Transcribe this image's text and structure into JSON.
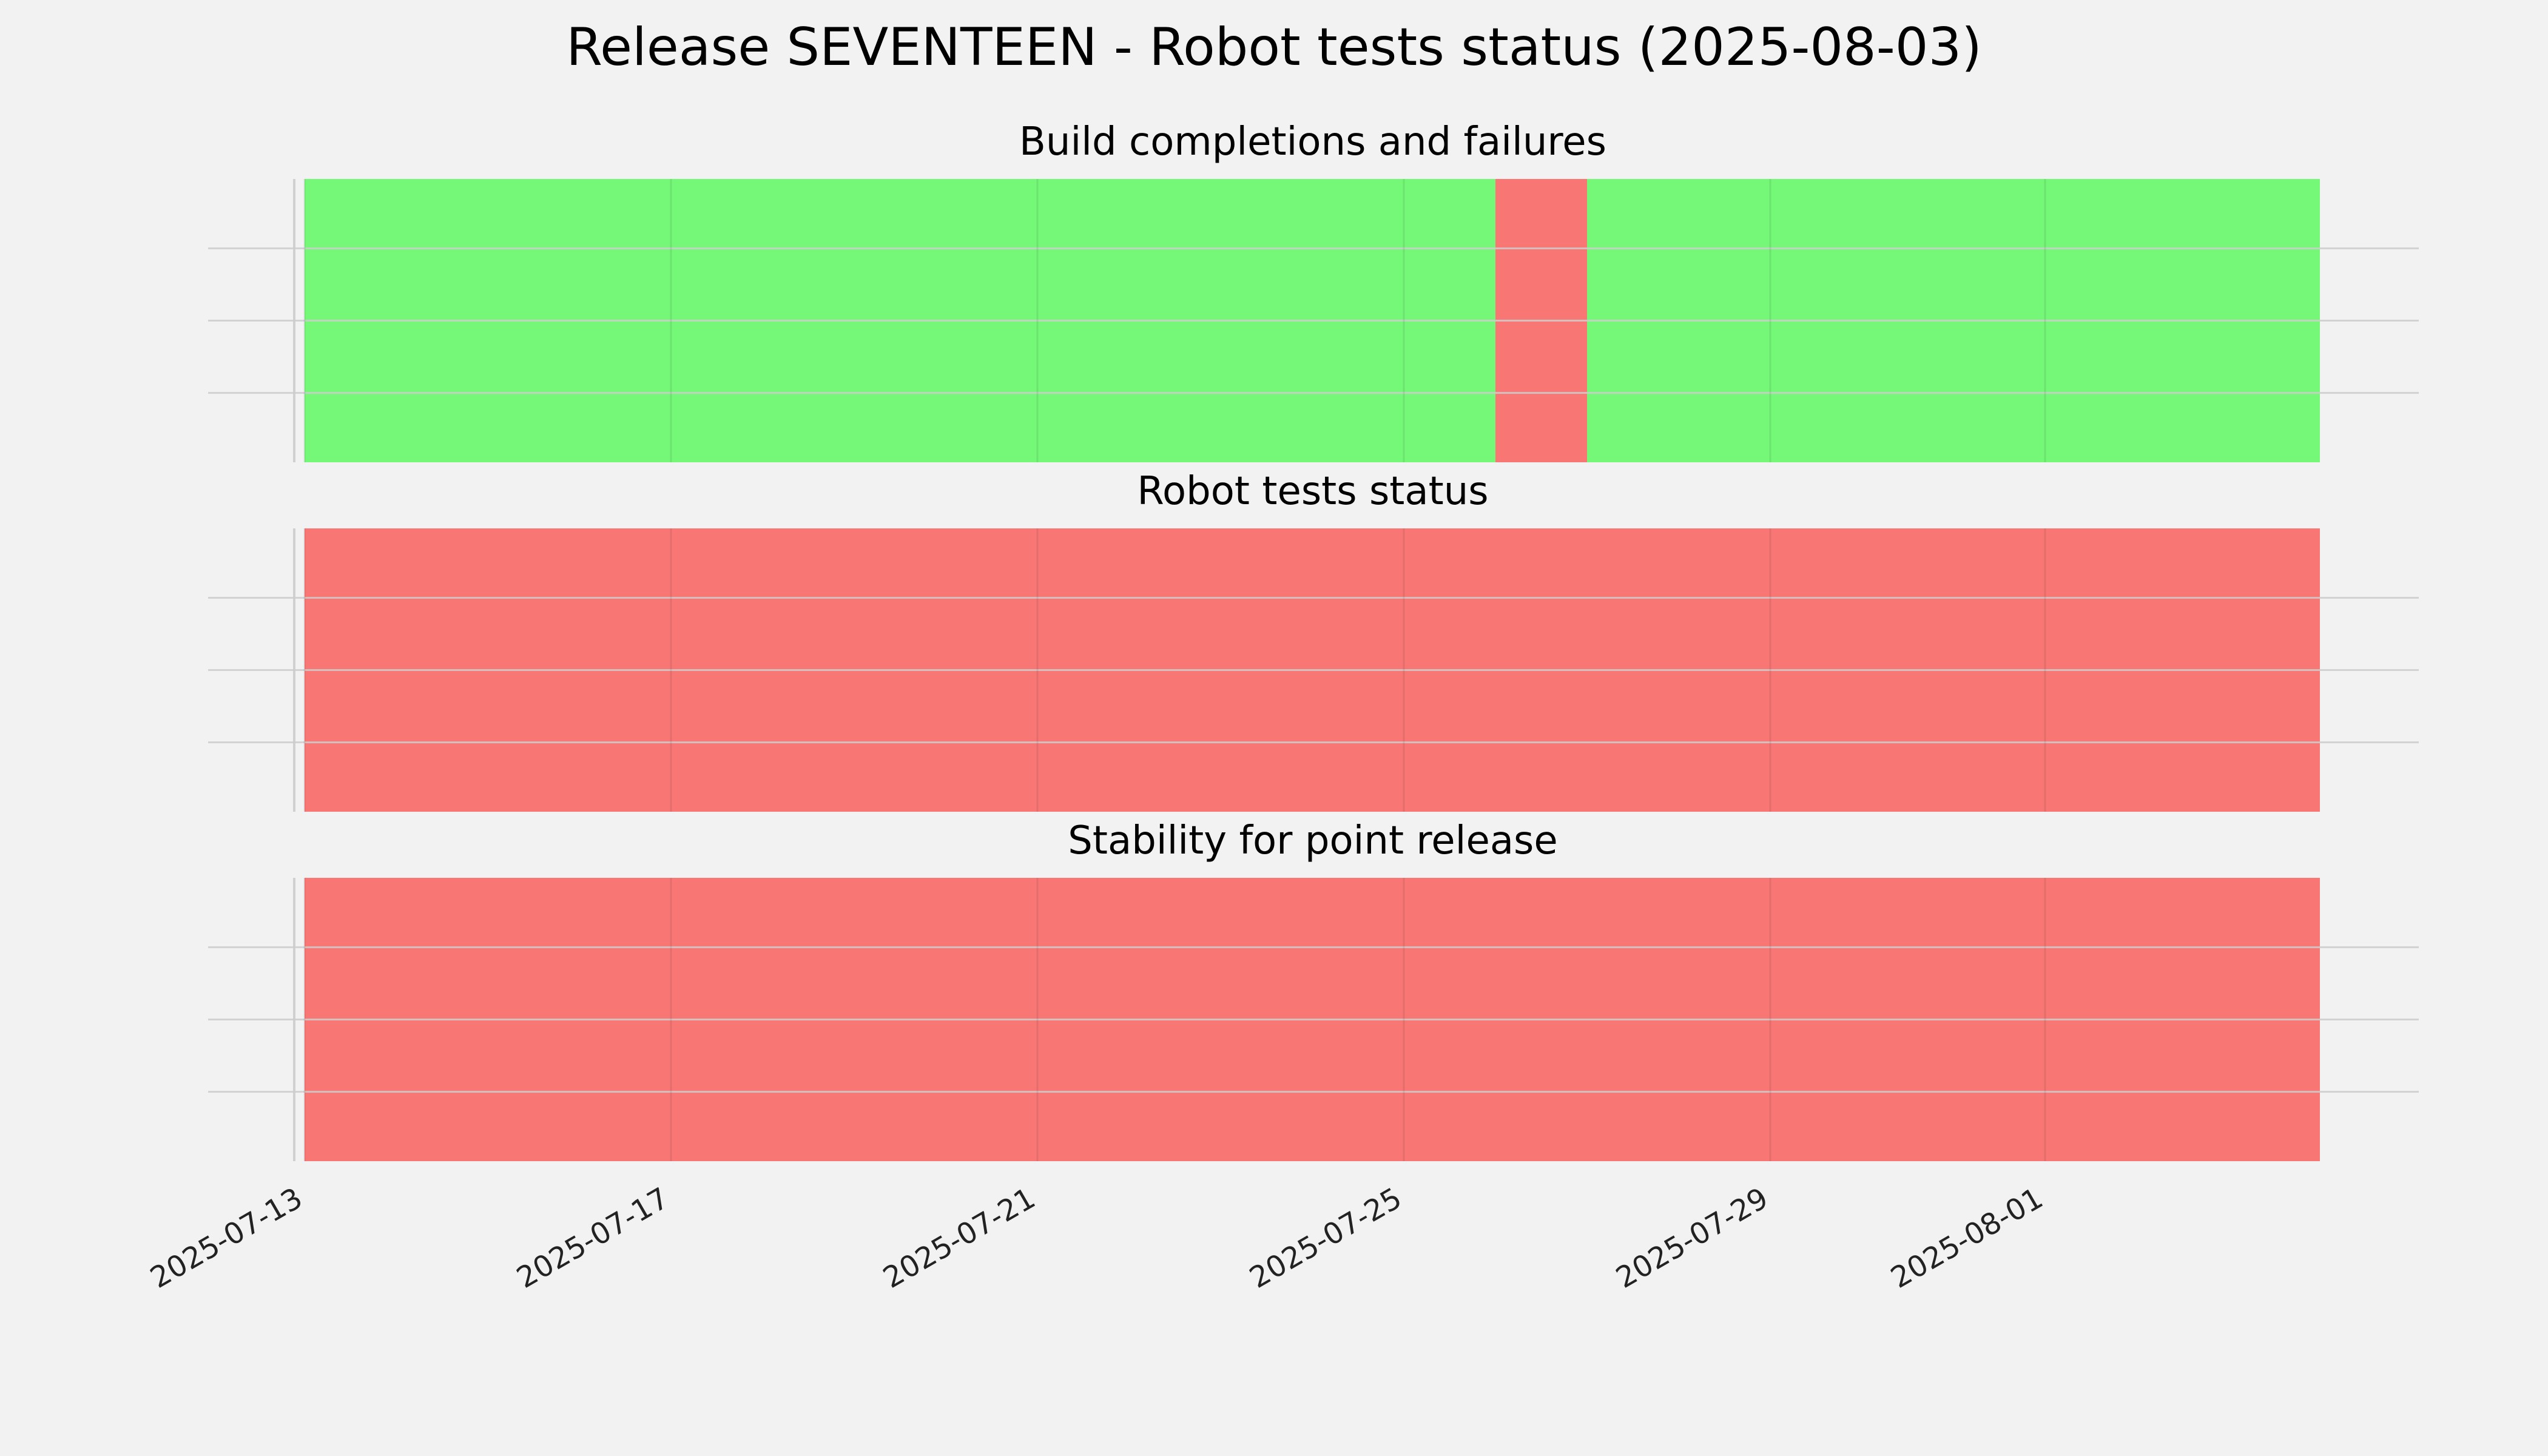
{
  "figure": {
    "title": "Release SEVENTEEN - Robot tests status (2025-08-03)"
  },
  "colors": {
    "background": "#f2f2f2",
    "success": "#75f878",
    "failure": "#f87775",
    "grid": "#cccccc"
  },
  "chart_data": {
    "type": "bar",
    "orientation": "horizontal-timeline",
    "xaxis": {
      "type": "date",
      "xlim": [
        "2025-07-13",
        "2025-08-04"
      ],
      "ticks": [
        "2025-07-13",
        "2025-07-17",
        "2025-07-21",
        "2025-07-25",
        "2025-07-29",
        "2025-08-01"
      ],
      "tick_labels": [
        "2025-07-13",
        "2025-07-17",
        "2025-07-21",
        "2025-07-25",
        "2025-07-29",
        "2025-08-01"
      ],
      "tick_rotation_deg": 30
    },
    "grid": true,
    "legend": "none",
    "panels": [
      {
        "title": "Build completions and failures",
        "segments": [
          {
            "start": "2025-07-13",
            "end": "2025-07-26",
            "status": "success"
          },
          {
            "start": "2025-07-26",
            "end": "2025-07-27",
            "status": "failure"
          },
          {
            "start": "2025-07-27",
            "end": "2025-08-04",
            "status": "success"
          }
        ]
      },
      {
        "title": "Robot tests status",
        "segments": [
          {
            "start": "2025-07-13",
            "end": "2025-08-04",
            "status": "failure"
          }
        ]
      },
      {
        "title": "Stability for point release",
        "segments": [
          {
            "start": "2025-07-13",
            "end": "2025-08-04",
            "status": "failure"
          }
        ]
      }
    ]
  }
}
